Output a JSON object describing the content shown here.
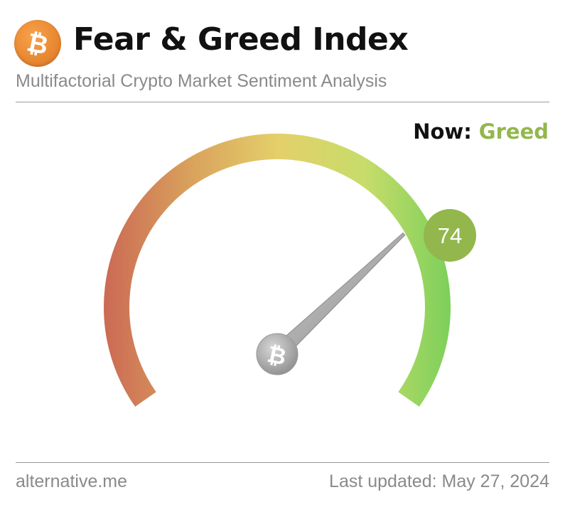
{
  "header": {
    "title": "Fear & Greed Index",
    "subtitle": "Multifactorial Crypto Market Sentiment Analysis",
    "logo_icon": "bitcoin-icon",
    "logo_color": "#f0902e"
  },
  "status": {
    "now_label": "Now:",
    "now_value": "Greed",
    "now_color": "#93b74c"
  },
  "gauge": {
    "value": 74,
    "value_label": "74",
    "min": 0,
    "max": 100,
    "badge_color": "#93b74c",
    "color_stops": [
      "#cc6b55",
      "#d9a35c",
      "#e4d06b",
      "#c7dc6a",
      "#7bd05a"
    ],
    "hub_icon": "bitcoin-icon"
  },
  "footer": {
    "source": "alternative.me",
    "last_updated": "Last updated: May 27, 2024"
  }
}
